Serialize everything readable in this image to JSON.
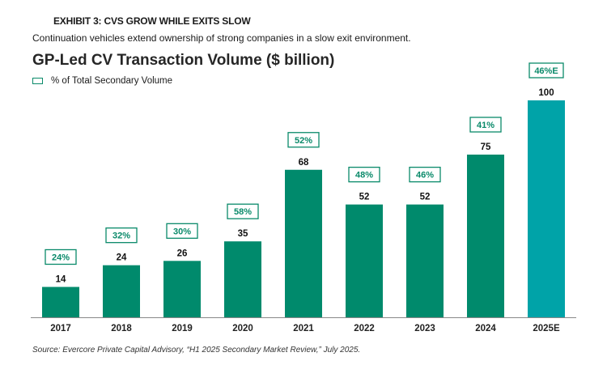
{
  "exhibit_label": "EXHIBIT 3: CVS GROW WHILE EXITS SLOW",
  "subtitle": "Continuation vehicles extend ownership of strong companies in a slow exit environment.",
  "source": "Source: Evercore Private Capital Advisory, “H1 2025 Secondary Market Review,” July 2025.",
  "colors": {
    "bar": "#008a6c",
    "bar_estimate": "#00a3a8",
    "label_box": "#0a8a6a",
    "axis": "#888888"
  },
  "chart_data": {
    "type": "bar",
    "title": "GP-Led CV Transaction Volume ($ billion)",
    "legend": [
      "% of Total Secondary Volume"
    ],
    "categories": [
      "2017",
      "2018",
      "2019",
      "2020",
      "2021",
      "2022",
      "2023",
      "2024",
      "2025E"
    ],
    "values": [
      14,
      24,
      26,
      35,
      68,
      52,
      52,
      75,
      100
    ],
    "value_labels": [
      "14",
      "24",
      "26",
      "35",
      "68",
      "52",
      "52",
      "75",
      "100"
    ],
    "pct_labels": [
      "24%",
      "32%",
      "30%",
      "58%",
      "52%",
      "48%",
      "46%",
      "41%",
      "46%E"
    ],
    "estimate_flags": [
      false,
      false,
      false,
      false,
      false,
      false,
      false,
      false,
      true
    ],
    "ylim": [
      0,
      100
    ],
    "grid": false
  }
}
